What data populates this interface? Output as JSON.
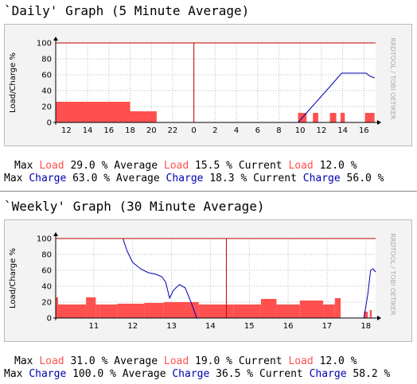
{
  "chart_data": [
    {
      "type": "combo",
      "title": "`Daily' Graph (5 Minute Average)",
      "ylabel": "Load/Charge %",
      "watermark": "RRDTOOL / TOBI OETIKER",
      "xlim": [
        11,
        41.1
      ],
      "xticks": [
        12,
        14,
        16,
        18,
        20,
        22,
        {
          "value": 24,
          "label": "0"
        },
        {
          "value": 26,
          "label": "2"
        },
        {
          "value": 28,
          "label": "4"
        },
        {
          "value": 30,
          "label": "6"
        },
        {
          "value": 32,
          "label": "8"
        },
        {
          "value": 34,
          "label": "10"
        },
        {
          "value": 36,
          "label": "12"
        },
        {
          "value": 38,
          "label": "14"
        },
        {
          "value": 40,
          "label": "16"
        }
      ],
      "ylim": [
        0,
        100
      ],
      "yticks": [
        0,
        20,
        40,
        60,
        80,
        100
      ],
      "grid": true,
      "vlines": [
        24
      ],
      "series": [
        {
          "name": "Load",
          "type": "bar",
          "color": "#ff5050",
          "bins": [
            11,
            18,
            20.5,
            33.8,
            34.6,
            35.2,
            35.7,
            36.8,
            37.4,
            37.8,
            38.2,
            40.1,
            41.0
          ],
          "values": [
            26,
            14,
            0,
            12,
            0,
            12,
            0,
            12,
            0,
            12,
            0,
            12
          ],
          "stats": {
            "labels": [
              "Max",
              "Average",
              "Current"
            ],
            "values": [
              29.0,
              15.5,
              12.0
            ],
            "value_labels": [
              "29.0 %",
              "15.5 %",
              "12.0 %"
            ]
          }
        },
        {
          "name": "Charge",
          "type": "line",
          "color": "#0000b0",
          "x": [
            33.8,
            35,
            36,
            37,
            37.9,
            40.2,
            40.6,
            41.0
          ],
          "values": [
            0,
            18,
            33,
            48,
            62,
            62,
            58,
            56
          ],
          "stats": {
            "labels": [
              "Max",
              "Average",
              "Current"
            ],
            "values": [
              63.0,
              18.3,
              56.0
            ],
            "value_labels": [
              "63.0 %",
              "18.3 %",
              "56.0 %"
            ]
          }
        }
      ]
    },
    {
      "type": "combo",
      "title": "`Weekly' Graph (30 Minute Average)",
      "ylabel": "Load/Charge %",
      "watermark": "RRDTOOL / TOBI OETIKER",
      "xlim": [
        10.02,
        18.25
      ],
      "xticks": [
        11,
        12,
        13,
        14,
        15,
        16,
        17,
        18
      ],
      "ylim": [
        0,
        100
      ],
      "yticks": [
        0,
        20,
        40,
        60,
        80,
        100
      ],
      "grid": true,
      "vlines": [
        14.41
      ],
      "series": [
        {
          "name": "Load",
          "type": "bar",
          "color": "#ff5050",
          "bins": [
            10.02,
            10.08,
            10.8,
            11.05,
            11.15,
            11.6,
            12.3,
            12.8,
            13.7,
            14.6,
            15.3,
            15.7,
            16.3,
            16.9,
            17.2,
            17.35,
            17.95,
            18.05,
            18.1,
            18.15,
            18.25
          ],
          "values": [
            26,
            17,
            26,
            17,
            17,
            18,
            19,
            20,
            17,
            17,
            24,
            17,
            22,
            17,
            25,
            0,
            8,
            0,
            10,
            0
          ],
          "stats": {
            "labels": [
              "Max",
              "Average",
              "Current"
            ],
            "values": [
              31.0,
              19.0,
              12.0
            ],
            "value_labels": [
              "31.0 %",
              "19.0 %",
              "12.0 %"
            ]
          }
        },
        {
          "name": "Charge",
          "type": "line",
          "color": "#0000b0",
          "x": [
            11.75,
            11.85,
            12.0,
            12.2,
            12.4,
            12.6,
            12.75,
            12.85,
            12.95,
            13.05,
            13.2,
            13.35,
            13.5,
            13.65,
            16,
            17.95,
            18.05,
            18.12,
            18.18,
            18.25
          ],
          "values": [
            100,
            85,
            70,
            62,
            57,
            55,
            52,
            45,
            25,
            35,
            42,
            38,
            20,
            0,
            null,
            0,
            30,
            60,
            62,
            58
          ],
          "stats": {
            "labels": [
              "Max",
              "Average",
              "Current"
            ],
            "values": [
              100.0,
              36.5,
              58.2
            ],
            "value_labels": [
              "100.0 %",
              "36.5 %",
              "58.2 %"
            ]
          }
        }
      ]
    }
  ]
}
